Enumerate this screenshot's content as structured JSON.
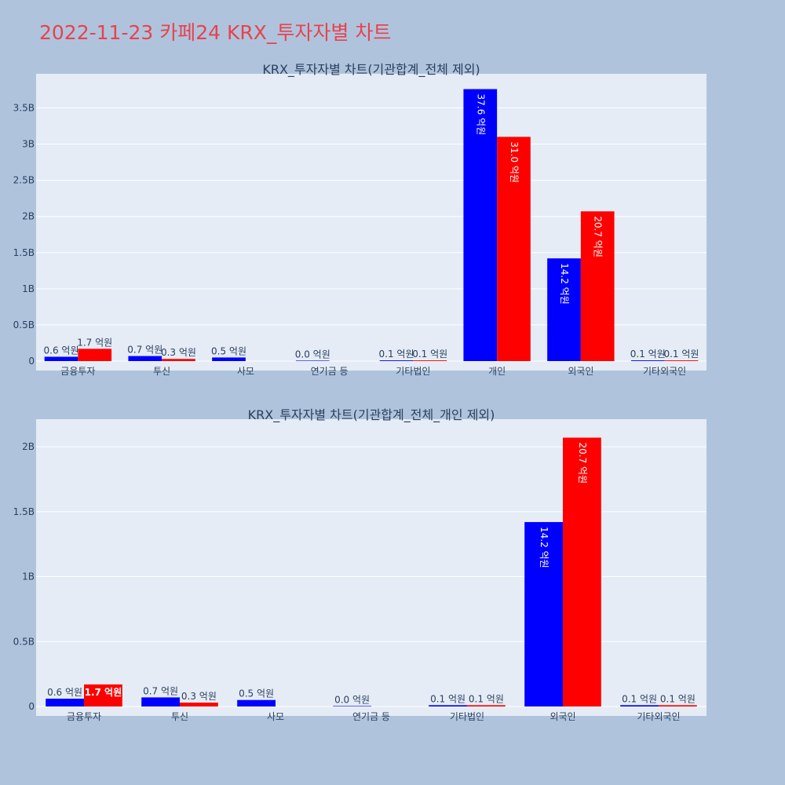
{
  "page": {
    "title": "2022-11-23 카페24 KRX_투자자별 차트"
  },
  "colors": {
    "buy": "#0000ff",
    "sell": "#ff0000",
    "plot_bg": "#e5ecf6",
    "page_bg": "#afc4dc",
    "title": "#e8424f"
  },
  "chart_data": [
    {
      "type": "bar",
      "title": "KRX_투자자별 차트(기관합계_전체 제외)",
      "categories": [
        "금융투자",
        "투신",
        "사모",
        "연기금 등",
        "기타법인",
        "개인",
        "외국인",
        "기타외국인"
      ],
      "ylim": [
        0,
        3.95
      ],
      "yunit": "B",
      "yticks": [
        0,
        0.5,
        1,
        1.5,
        2,
        2.5,
        3,
        3.5
      ],
      "ytick_labels": [
        "0",
        "0.5B",
        "1B",
        "1.5B",
        "2B",
        "2.5B",
        "3B",
        "3.5B"
      ],
      "grid": true,
      "series": [
        {
          "color": "#0000ff",
          "values": [
            0.06,
            0.07,
            0.05,
            0.003,
            0.01,
            3.76,
            1.42,
            0.01
          ],
          "labels": [
            "0.6 억원",
            "0.7 억원",
            "0.5 억원",
            "0.0 억원",
            "0.1 억원",
            "37.6 억원",
            "14.2 억원",
            "0.1 억원"
          ]
        },
        {
          "color": "#ff0000",
          "values": [
            0.17,
            0.03,
            null,
            null,
            0.01,
            3.1,
            2.07,
            0.01
          ],
          "labels": [
            "1.7 억원",
            "0.3 억원",
            null,
            null,
            "0.1 억원",
            "31.0 억원",
            "20.7 억원",
            "0.1 억원"
          ]
        }
      ]
    },
    {
      "type": "bar",
      "title": "KRX_투자자별 차트(기관합계_전체_개인 제외)",
      "categories": [
        "금융투자",
        "투신",
        "사모",
        "연기금 등",
        "기타법인",
        "외국인",
        "기타외국인"
      ],
      "ylim": [
        0,
        2.2
      ],
      "yunit": "B",
      "yticks": [
        0,
        0.5,
        1,
        1.5,
        2
      ],
      "ytick_labels": [
        "0",
        "0.5B",
        "1B",
        "1.5B",
        "2B"
      ],
      "grid": true,
      "series": [
        {
          "color": "#0000ff",
          "values": [
            0.06,
            0.07,
            0.05,
            0.003,
            0.01,
            1.42,
            0.01
          ],
          "labels": [
            "0.6 억원",
            "0.7 억원",
            "0.5 억원",
            "0.0 억원",
            "0.1 억원",
            "14.2 억원",
            "0.1 억원"
          ]
        },
        {
          "color": "#ff0000",
          "values": [
            0.17,
            0.03,
            null,
            null,
            0.01,
            2.07,
            0.01
          ],
          "labels": [
            "1.7 억원",
            "0.3 억원",
            null,
            null,
            "0.1 억원",
            "20.7 억원",
            "0.1 억원"
          ]
        }
      ]
    }
  ]
}
